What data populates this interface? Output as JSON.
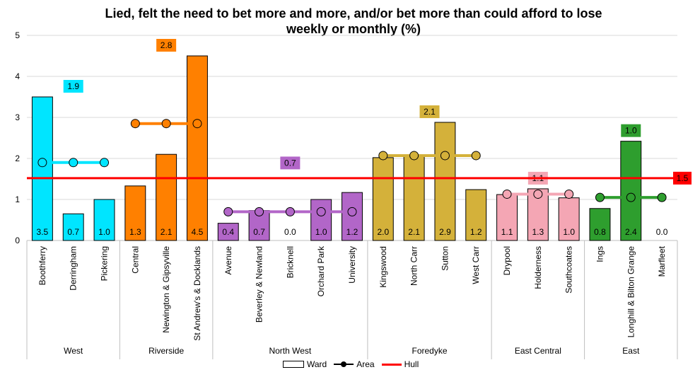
{
  "chart_data": {
    "type": "bar",
    "title": "Lied, felt the need to bet more and more, and/or bet more than could afford to lose weekly or monthly (%)",
    "ylim": [
      0,
      5
    ],
    "yticks": [
      0,
      1,
      2,
      3,
      4,
      5
    ],
    "grid": true,
    "legend_position": "bottom",
    "groups": [
      {
        "name": "West",
        "color": "#00e5ff",
        "area_value": 1.9,
        "area_label": "1.9",
        "wards": [
          {
            "name": "Boothferry",
            "value": 3.5,
            "label": "3.5"
          },
          {
            "name": "Derringham",
            "value": 0.65,
            "label": "0.7"
          },
          {
            "name": "Pickering",
            "value": 1.0,
            "label": "1.0"
          }
        ]
      },
      {
        "name": "Riverside",
        "color": "#ff8000",
        "area_value": 2.85,
        "area_label": "2.8",
        "wards": [
          {
            "name": "Central",
            "value": 1.33,
            "label": "1.3"
          },
          {
            "name": "Newington & Gipsyville",
            "value": 2.1,
            "label": "2.1"
          },
          {
            "name": "St Andrew's & Docklands",
            "value": 4.5,
            "label": "4.5"
          }
        ]
      },
      {
        "name": "North West",
        "color": "#b266c8",
        "area_value": 0.7,
        "area_label": "0.7",
        "wards": [
          {
            "name": "Avenue",
            "value": 0.42,
            "label": "0.4"
          },
          {
            "name": "Beverley & Newland",
            "value": 0.73,
            "label": "0.7"
          },
          {
            "name": "Bricknell",
            "value": 0.0,
            "label": "0.0"
          },
          {
            "name": "Orchard Park",
            "value": 1.0,
            "label": "1.0"
          },
          {
            "name": "University",
            "value": 1.17,
            "label": "1.2"
          }
        ]
      },
      {
        "name": "Foredyke",
        "color": "#d4b13a",
        "area_value": 2.07,
        "area_label": "2.1",
        "wards": [
          {
            "name": "Kingswood",
            "value": 2.02,
            "label": "2.0"
          },
          {
            "name": "North Carr",
            "value": 2.07,
            "label": "2.1"
          },
          {
            "name": "Sutton",
            "value": 2.88,
            "label": "2.9"
          },
          {
            "name": "West Carr",
            "value": 1.24,
            "label": "1.2"
          }
        ]
      },
      {
        "name": "East Central",
        "color": "#f4a6b4",
        "area_value": 1.13,
        "area_label": "1.1",
        "wards": [
          {
            "name": "Drypool",
            "value": 1.12,
            "label": "1.1"
          },
          {
            "name": "Holderness",
            "value": 1.26,
            "label": "1.3"
          },
          {
            "name": "Southcoates",
            "value": 1.04,
            "label": "1.0"
          }
        ]
      },
      {
        "name": "East",
        "color": "#2e9e2e",
        "area_value": 1.05,
        "area_label": "1.0",
        "wards": [
          {
            "name": "Ings",
            "value": 0.78,
            "label": "0.8"
          },
          {
            "name": "Longhill & Bilton Grange",
            "value": 2.42,
            "label": "2.4"
          },
          {
            "name": "Marfleet",
            "value": 0.0,
            "label": "0.0"
          }
        ]
      }
    ],
    "hull_value": 1.52,
    "hull_label": "1.5",
    "hull_color": "#ff0000",
    "series": [
      {
        "name": "Ward"
      },
      {
        "name": "Area"
      },
      {
        "name": "Hull"
      }
    ]
  }
}
